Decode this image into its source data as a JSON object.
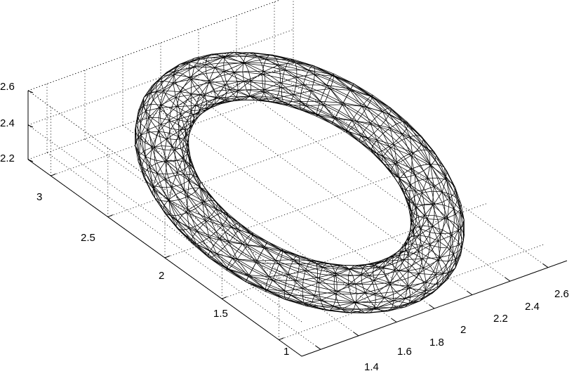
{
  "chart_data": {
    "type": "3d-wireframe-surface",
    "surface": "torus",
    "x_ticks": [
      "1.4",
      "1.6",
      "1.8",
      "2",
      "2.2",
      "2.4",
      "2.6"
    ],
    "y_ticks": [
      "1",
      "1.5",
      "2",
      "2.5",
      "3"
    ],
    "z_ticks": [
      "2.2",
      "2.4",
      "2.6"
    ],
    "xlim": [
      1.3,
      2.7
    ],
    "ylim": [
      0.8,
      3.2
    ],
    "zlim": [
      2.2,
      2.6
    ],
    "grid": true,
    "box": "dotted",
    "line_color": "#000000",
    "background": "#ffffff"
  }
}
